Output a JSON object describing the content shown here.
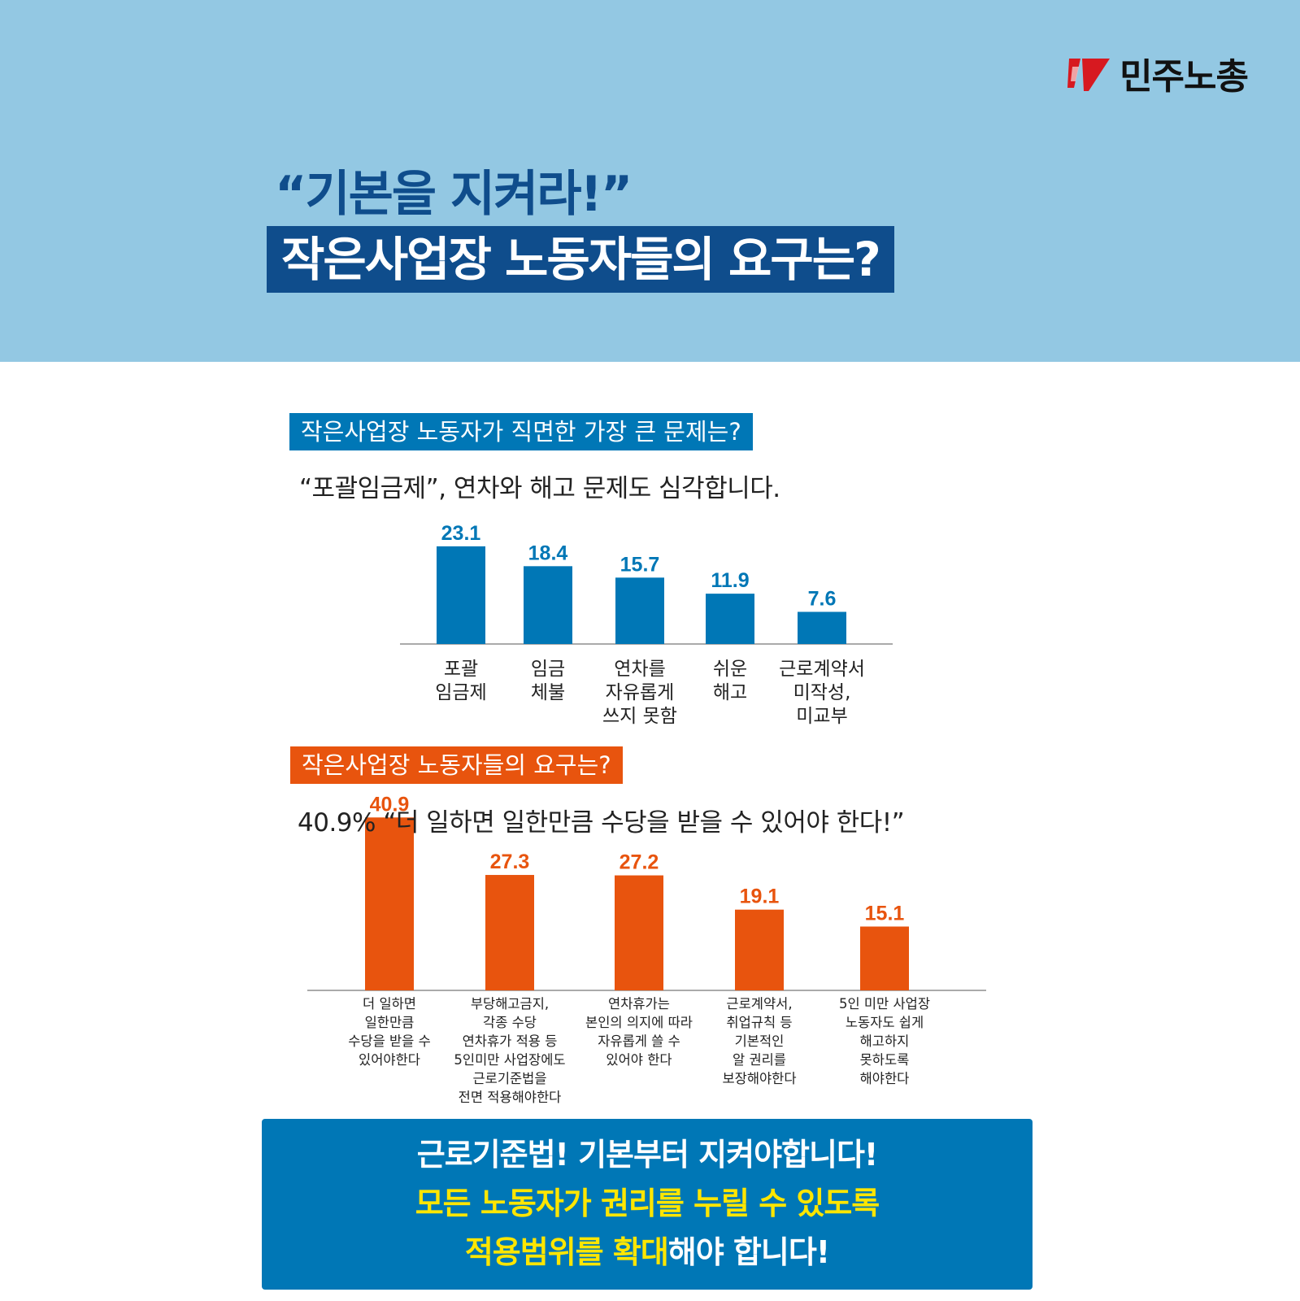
{
  "brand": {
    "name": "민주노총"
  },
  "header": {
    "quote_title": "“기본을 지켜라!”",
    "main_title": "작은사업장 노동자들의 요구는?"
  },
  "section1": {
    "label": "작은사업장 노동자가 직면한 가장 큰 문제는?",
    "subtitle": "“포괄임금제”, 연차와 해고 문제도 심각합니다."
  },
  "section2": {
    "label": "작은사업장 노동자들의 요구는?",
    "subtitle": "40.9% “더 일하면 일한만큼 수당을 받을 수 있어야 한다!”"
  },
  "chart_data": [
    {
      "type": "bar",
      "color": "#0077b6",
      "categories": [
        [
          "포괄",
          "임금제"
        ],
        [
          "임금",
          "체불"
        ],
        [
          "연차를",
          "자유롭게",
          "쓰지 못함"
        ],
        [
          "쉬운",
          "해고"
        ],
        [
          "근로계약서",
          "미작성,",
          "미교부"
        ]
      ],
      "values": [
        23.1,
        18.4,
        15.7,
        11.9,
        7.6
      ],
      "value_labels": [
        "23.1",
        "18.4",
        "15.7",
        "11.9",
        "7.6"
      ]
    },
    {
      "type": "bar",
      "color": "#e8540e",
      "categories": [
        [
          "더 일하면",
          "일한만큼",
          "수당을 받을 수",
          "있어야한다"
        ],
        [
          "부당해고금지,",
          "각종 수당",
          "연차휴가 적용 등",
          "5인미만 사업장에도",
          "근로기준법을",
          "전면 적용해야한다"
        ],
        [
          "연차휴가는",
          "본인의 의지에 따라",
          "자유롭게 쓸 수",
          "있어야 한다"
        ],
        [
          "근로계약서,",
          "취업규칙 등",
          "기본적인",
          "알 권리를",
          "보장해야한다"
        ],
        [
          "5인 미만 사업장",
          "노동자도 쉽게",
          "해고하지",
          "못하도록",
          "해야한다"
        ]
      ],
      "values": [
        40.9,
        27.3,
        27.2,
        19.1,
        15.1
      ],
      "value_labels": [
        "40.9",
        "27.3",
        "27.2",
        "19.1",
        "15.1"
      ]
    }
  ],
  "cta": {
    "line1": "근로기준법! 기본부터 지켜야합니다!",
    "line2": "모든 노동자가 권리를 누릴 수 있도록",
    "line3_highlight": "적용범위를 확대",
    "line3_rest": "해야 합니다!"
  }
}
